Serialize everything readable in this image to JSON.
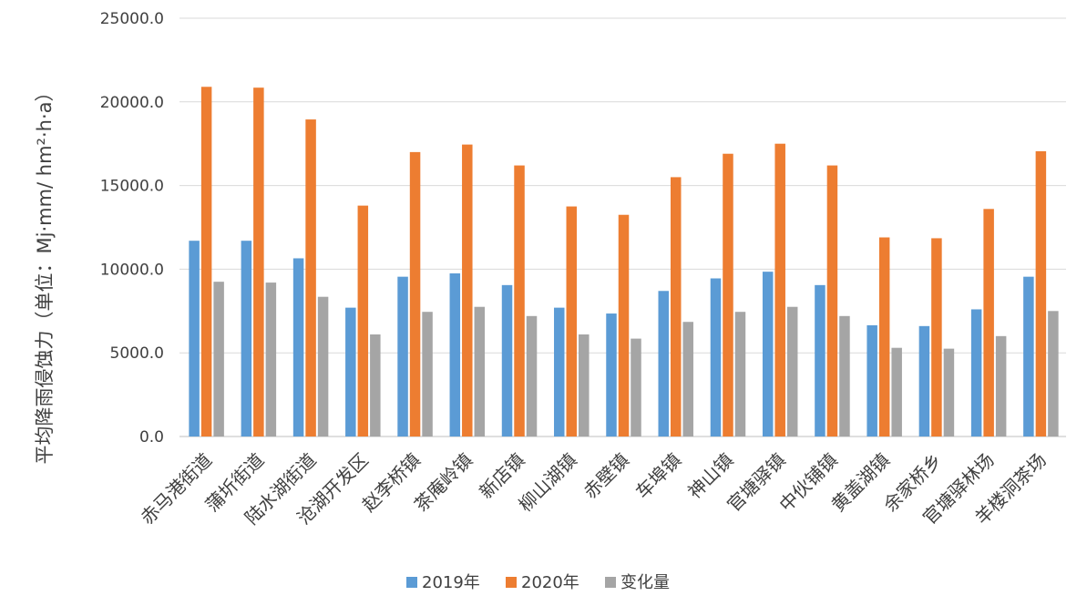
{
  "chart_data": {
    "type": "bar",
    "title": "",
    "xlabel": "",
    "ylabel": "平均降雨侵蚀力（单位：Mj·mm/ hm²·h·a）",
    "ylim": [
      0,
      25000
    ],
    "yticks": [
      0,
      5000,
      10000,
      15000,
      20000,
      25000
    ],
    "ytick_labels": [
      "0.0",
      "5000.0",
      "10000.0",
      "15000.0",
      "20000.0",
      "25000.0"
    ],
    "grid": true,
    "legend_position": "bottom",
    "categories": [
      "赤马港街道",
      "蒲圻街道",
      "陆水湖街道",
      "沧湖开发区",
      "赵李桥镇",
      "茶庵岭镇",
      "新店镇",
      "柳山湖镇",
      "赤壁镇",
      "车埠镇",
      "神山镇",
      "官塘驿镇",
      "中伙铺镇",
      "黄盖湖镇",
      "余家桥乡",
      "官塘驿林场",
      "羊楼洞茶场"
    ],
    "series": [
      {
        "name": "2019年",
        "color": "#5B9BD5",
        "values": [
          11700,
          11700,
          10650,
          7700,
          9550,
          9750,
          9050,
          7700,
          7350,
          8700,
          9450,
          9850,
          9050,
          6650,
          6600,
          7600,
          9550
        ]
      },
      {
        "name": "2020年",
        "color": "#ED7D31",
        "values": [
          20900,
          20850,
          18950,
          13800,
          17000,
          17450,
          16200,
          13750,
          13250,
          15500,
          16900,
          17500,
          16200,
          11900,
          11850,
          13600,
          17050
        ]
      },
      {
        "name": "变化量",
        "color": "#A5A5A5",
        "values": [
          9250,
          9200,
          8350,
          6100,
          7450,
          7750,
          7200,
          6100,
          5850,
          6850,
          7450,
          7750,
          7200,
          5300,
          5250,
          6000,
          7500
        ]
      }
    ]
  }
}
